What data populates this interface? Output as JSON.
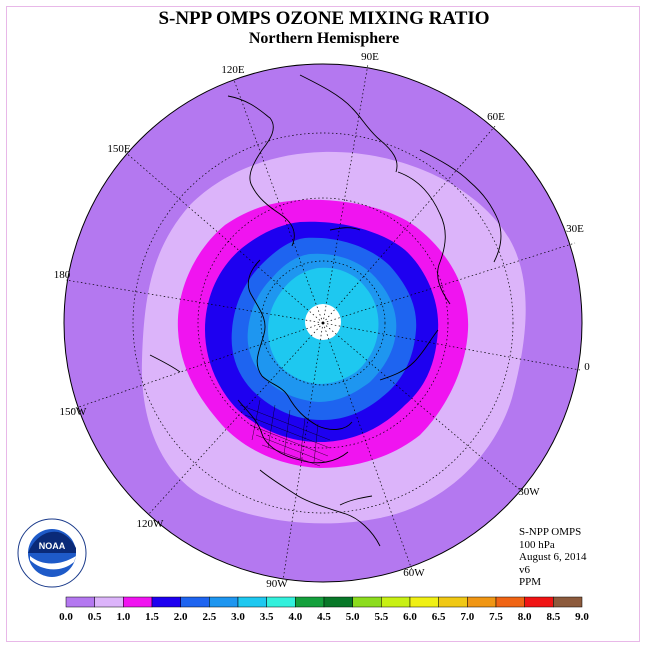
{
  "title": "S-NPP OMPS OZONE MIXING RATIO",
  "subtitle": "Northern Hemisphere",
  "info": {
    "instrument": "S-NPP OMPS",
    "level": "100 hPa",
    "date": "August 6, 2014",
    "version": "v6",
    "unit": "PPM"
  },
  "logo": {
    "text": "NOAA",
    "ring_text": "NATIONAL OCEANIC AND ATMOSPHERIC ADMINISTRATION · U.S. DEPARTMENT OF COMMERCE"
  },
  "map": {
    "projection": "polar stereographic",
    "longitude_labels": [
      {
        "text": "90E"
      },
      {
        "text": "60E"
      },
      {
        "text": "30E"
      },
      {
        "text": "0"
      },
      {
        "text": "30W"
      },
      {
        "text": "60W"
      },
      {
        "text": "90W"
      },
      {
        "text": "120W"
      },
      {
        "text": "150W"
      },
      {
        "text": "180"
      },
      {
        "text": "150E"
      },
      {
        "text": "120E"
      }
    ]
  },
  "colorbar": {
    "ticks": [
      "0.0",
      "0.5",
      "1.0",
      "1.5",
      "2.0",
      "2.5",
      "3.0",
      "3.5",
      "4.0",
      "4.5",
      "5.0",
      "5.5",
      "6.0",
      "6.5",
      "7.0",
      "7.5",
      "8.0",
      "8.5",
      "9.0"
    ],
    "colors": [
      "#b478f0",
      "#dcb4fa",
      "#f014f0",
      "#1e00f0",
      "#1e64f0",
      "#1e96f0",
      "#1ec8f0",
      "#32f0dc",
      "#14a03c",
      "#087828",
      "#8cdc1e",
      "#c8f014",
      "#f0f014",
      "#f0c814",
      "#f09614",
      "#f06414",
      "#f01414",
      "#8c5a3c"
    ]
  },
  "colors": {
    "background_land": "#ffffff",
    "pole_hole": "#ffffff"
  }
}
